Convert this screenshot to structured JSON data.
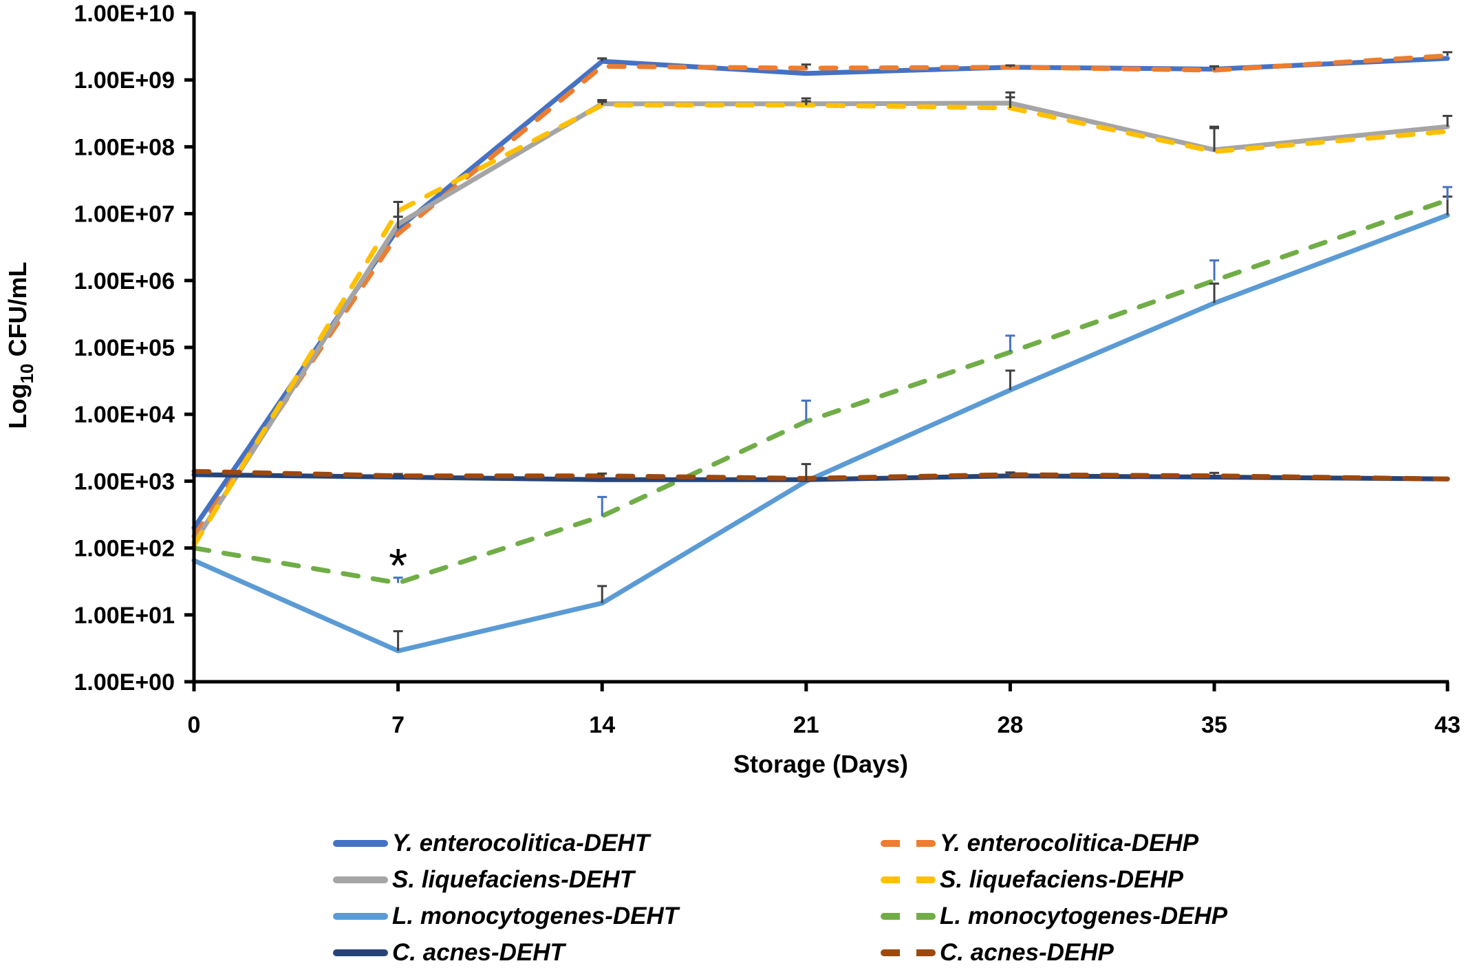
{
  "chart_data": {
    "type": "line",
    "title": "",
    "xlabel": "Storage (Days)",
    "ylabel_main": "Log",
    "ylabel_sub": "10",
    "ylabel_rest": " CFU/mL",
    "yscale": "log",
    "ylim": [
      1,
      10000000000
    ],
    "x": [
      0,
      7,
      14,
      21,
      28,
      35,
      43
    ],
    "x_tick_labels": [
      "0",
      "7",
      "14",
      "21",
      "28",
      "35",
      "43"
    ],
    "y_tick_values": [
      1,
      10,
      100,
      1000,
      10000,
      100000,
      1000000,
      10000000,
      100000000,
      1000000000,
      10000000000
    ],
    "y_tick_labels": [
      "1.00E+00",
      "1.00E+01",
      "1.00E+02",
      "1.00E+03",
      "1.00E+04",
      "1.00E+05",
      "1.00E+06",
      "1.00E+07",
      "1.00E+08",
      "1.00E+09",
      "1.00E+10"
    ],
    "grid": false,
    "legend_position": "bottom",
    "annotations": [
      {
        "text": "*",
        "x": 7,
        "y": 80
      }
    ],
    "series": [
      {
        "name": "Y. enterocolitica-DEHT",
        "color": "#4472C4",
        "dash": false,
        "values": [
          200,
          6000000,
          1900000000,
          1250000000,
          1550000000,
          1450000000,
          2100000000
        ],
        "error_upper": [
          null,
          9000000,
          2100000000,
          null,
          1650000000,
          null,
          null
        ],
        "error_color": "#404040"
      },
      {
        "name": "Y. enterocolitica-DEHP",
        "color": "#ED7D31",
        "dash": true,
        "values": [
          150,
          5000000,
          1600000000,
          1500000000,
          1550000000,
          1400000000,
          2300000000
        ],
        "error_upper": [
          null,
          null,
          null,
          1700000000,
          null,
          1600000000,
          2600000000
        ],
        "error_color": "#404040"
      },
      {
        "name": "S. liquefaciens-DEHT",
        "color": "#A5A5A5",
        "dash": false,
        "values": [
          120,
          7000000,
          440000000,
          440000000,
          450000000,
          90000000,
          200000000
        ],
        "error_upper": [
          null,
          15000000,
          500000000,
          530000000,
          650000000,
          190000000,
          290000000
        ],
        "error_color": "#404040"
      },
      {
        "name": "S. liquefaciens-DEHP",
        "color": "#FFC000",
        "dash": true,
        "values": [
          110,
          11000000,
          420000000,
          420000000,
          380000000,
          85000000,
          170000000
        ],
        "error_upper": [
          null,
          9000000,
          470000000,
          480000000,
          550000000,
          200000000,
          null
        ],
        "error_color": "#404040"
      },
      {
        "name": "L. monocytogenes-DEHT",
        "color": "#5B9BD5",
        "dash": false,
        "values": [
          65,
          2.9,
          15,
          1000,
          23000,
          460000,
          9500000
        ],
        "error_upper": [
          null,
          5.7,
          27,
          1800,
          45000,
          900000,
          18000000
        ],
        "error_color": "#404040"
      },
      {
        "name": "L. monocytogenes-DEHP",
        "color": "#70AD47",
        "dash": true,
        "values": [
          100,
          30,
          300,
          7800,
          85000,
          1000000,
          16000000
        ],
        "error_upper": [
          null,
          36,
          580,
          16000,
          150000,
          2000000,
          25000000
        ],
        "error_color": "#4472C4"
      },
      {
        "name": "C. acnes-DEHT",
        "color": "#264478",
        "dash": false,
        "values": [
          1250,
          1150,
          1050,
          1050,
          1200,
          1150,
          1080
        ],
        "error_upper": [
          null,
          null,
          null,
          null,
          null,
          null,
          null
        ],
        "error_color": "#404040"
      },
      {
        "name": "C. acnes-DEHP",
        "color": "#9E480E",
        "dash": true,
        "values": [
          1400,
          1200,
          1200,
          1100,
          1250,
          1200,
          1080
        ],
        "error_upper": [
          null,
          1280,
          1300,
          null,
          1350,
          1330,
          null
        ],
        "error_color": "#404040"
      }
    ]
  }
}
